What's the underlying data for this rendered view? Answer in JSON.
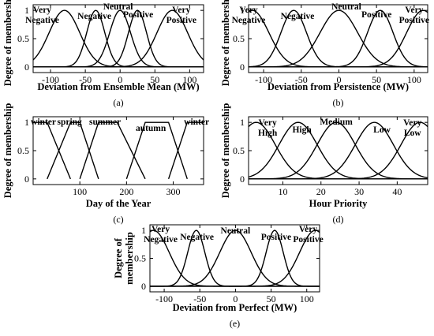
{
  "chart_data": [
    {
      "id": "a",
      "type": "line",
      "caption": "(a)",
      "xlabel": "Deviation from Ensemble Mean (MW)",
      "ylabel": "Degree of membership",
      "xlim": [
        -125,
        120
      ],
      "ylim": [
        -0.1,
        1.1
      ],
      "xticks": [
        -100,
        -50,
        0,
        50,
        100
      ],
      "yticks": [
        0,
        0.5,
        1
      ],
      "yticklabels": [
        "0",
        "0.5",
        "1"
      ],
      "shape": "gauss",
      "series": [
        {
          "name": "Very Negative",
          "label_lines": [
            "Very",
            "Negative"
          ],
          "mean": -80,
          "sigma": 22
        },
        {
          "name": "Negative",
          "label_lines": [
            "Negative"
          ],
          "mean": -35,
          "sigma": 13
        },
        {
          "name": "Neutral",
          "label_lines": [
            "Neutral"
          ],
          "mean": 0,
          "sigma": 15
        },
        {
          "name": "Positive",
          "label_lines": [
            "Positive"
          ],
          "mean": 25,
          "sigma": 13
        },
        {
          "name": "Very Positive",
          "label_lines": [
            "Very",
            "Positive"
          ],
          "mean": 75,
          "sigma": 22
        }
      ]
    },
    {
      "id": "b",
      "type": "line",
      "caption": "(b)",
      "xlabel": "Deviation from Persistence (MW)",
      "ylabel": "Degree of membership",
      "xlim": [
        -120,
        118
      ],
      "ylim": [
        -0.1,
        1.1
      ],
      "xticks": [
        -100,
        -50,
        0,
        50,
        100
      ],
      "yticks": [
        0,
        0.5,
        1
      ],
      "yticklabels": [
        "0",
        "0.5",
        "1"
      ],
      "shape": "gauss",
      "series": [
        {
          "name": "Very Negative",
          "label_lines": [
            "Very",
            "Negative"
          ],
          "mean": -115,
          "sigma": 22
        },
        {
          "name": "Negative",
          "label_lines": [
            "Negative"
          ],
          "mean": -60,
          "sigma": 17
        },
        {
          "name": "Neutral",
          "label_lines": [
            "Neutral"
          ],
          "mean": 0,
          "sigma": 25
        },
        {
          "name": "Positive",
          "label_lines": [
            "Positive"
          ],
          "mean": 55,
          "sigma": 17
        },
        {
          "name": "Very Positive",
          "label_lines": [
            "Very",
            "Positive"
          ],
          "mean": 112,
          "sigma": 22
        }
      ]
    },
    {
      "id": "c",
      "type": "line",
      "caption": "(c)",
      "xlabel": "Day of the Year",
      "ylabel": "Degree of membership",
      "xlim": [
        0,
        365
      ],
      "ylim": [
        -0.1,
        1.1
      ],
      "xticks": [
        100,
        200,
        300
      ],
      "yticks": [
        0,
        0.5,
        1
      ],
      "yticklabels": [
        "0",
        "0.5",
        "1"
      ],
      "shape": "trap",
      "series": [
        {
          "name": "winter",
          "label_lines": [
            "winter"
          ],
          "points": [
            [
              0,
              1
            ],
            [
              30,
              1
            ],
            [
              80,
              0
            ]
          ]
        },
        {
          "name": "spring",
          "label_lines": [
            "spring"
          ],
          "points": [
            [
              30,
              0
            ],
            [
              80,
              1
            ],
            [
              100,
              1
            ],
            [
              140,
              0
            ]
          ]
        },
        {
          "name": "summer",
          "label_lines": [
            "summer"
          ],
          "points": [
            [
              100,
              0
            ],
            [
              140,
              1
            ],
            [
              180,
              1
            ],
            [
              240,
              0
            ]
          ]
        },
        {
          "name": "autumn",
          "label_lines": [
            "autumn"
          ],
          "points": [
            [
              200,
              0
            ],
            [
              240,
              1
            ],
            [
              290,
              1
            ],
            [
              330,
              0
            ]
          ]
        },
        {
          "name": "winter",
          "label_lines": [
            "winter"
          ],
          "points": [
            [
              290,
              0
            ],
            [
              330,
              1
            ],
            [
              365,
              1
            ]
          ]
        }
      ]
    },
    {
      "id": "d",
      "type": "line",
      "caption": "(d)",
      "xlabel": "Hour Priority",
      "ylabel": "Degree of membership",
      "xlim": [
        1,
        48
      ],
      "ylim": [
        -0.1,
        1.1
      ],
      "xticks": [
        10,
        20,
        30,
        40
      ],
      "yticks": [
        0,
        0.5,
        1
      ],
      "yticklabels": [
        "0",
        "0.5",
        "1"
      ],
      "shape": "gauss",
      "series": [
        {
          "name": "Very High",
          "label_lines": [
            "Very",
            "High"
          ],
          "mean": 3,
          "sigma": 5
        },
        {
          "name": "High",
          "label_lines": [
            "High"
          ],
          "mean": 14,
          "sigma": 5
        },
        {
          "name": "Medium",
          "label_lines": [
            "Medium"
          ],
          "mean": 24,
          "sigma": 5
        },
        {
          "name": "Low",
          "label_lines": [
            "Low"
          ],
          "mean": 34,
          "sigma": 5
        },
        {
          "name": "Very Low",
          "label_lines": [
            "Very",
            "Low"
          ],
          "mean": 46,
          "sigma": 5
        }
      ]
    },
    {
      "id": "e",
      "type": "line",
      "caption": "(e)",
      "xlabel": "Deviation from Perfect (MW)",
      "ylabel": "Degree of membership",
      "ylabel_lines": [
        "Degree of",
        "membership"
      ],
      "xlim": [
        -120,
        118
      ],
      "ylim": [
        -0.1,
        1.1
      ],
      "xticks": [
        -100,
        -50,
        0,
        50,
        100
      ],
      "yticks": [
        0,
        0.5,
        1
      ],
      "yticklabels": [
        "0",
        "0.5",
        "1"
      ],
      "shape": "gauss",
      "series": [
        {
          "name": "Very Negative",
          "label_lines": [
            "Very",
            "Negative"
          ],
          "mean": -115,
          "sigma": 22
        },
        {
          "name": "Negative",
          "label_lines": [
            "Negative"
          ],
          "mean": -55,
          "sigma": 12
        },
        {
          "name": "Neutral",
          "label_lines": [
            "Neutral"
          ],
          "mean": 0,
          "sigma": 22
        },
        {
          "name": "Positive",
          "label_lines": [
            "Positive"
          ],
          "mean": 55,
          "sigma": 12
        },
        {
          "name": "Very Positive",
          "label_lines": [
            "Very",
            "Positive"
          ],
          "mean": 112,
          "sigma": 22
        }
      ]
    }
  ]
}
